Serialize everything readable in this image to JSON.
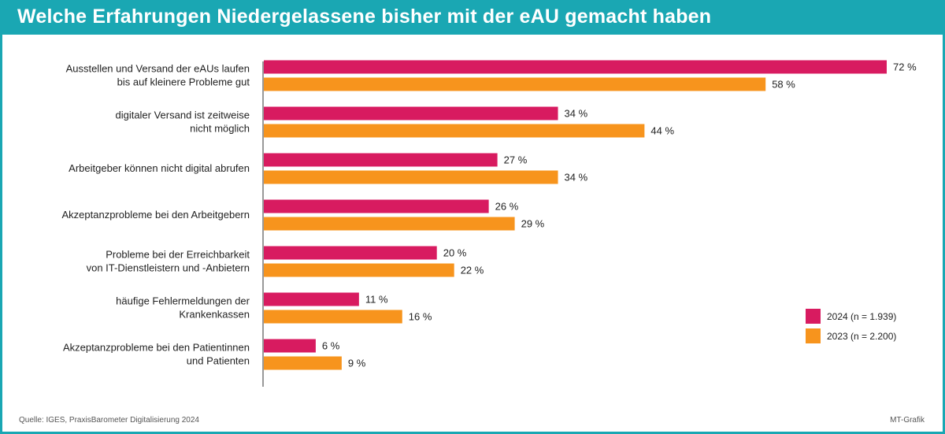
{
  "title": "Welche Erfahrungen Niedergelassene bisher mit der eAU gemacht haben",
  "source": "Quelle: IGES, PraxisBarometer Digitalisierung 2024",
  "credit": "MT-Grafik",
  "colors": {
    "series_2024": "#d81b60",
    "series_2023": "#f7941d",
    "frame": "#1aa7b3"
  },
  "chart_data": {
    "type": "bar",
    "orientation": "horizontal",
    "categories": [
      [
        "Ausstellen und Versand der eAUs laufen",
        "bis auf kleinere Probleme gut"
      ],
      [
        "digitaler Versand ist zeitweise",
        "nicht möglich"
      ],
      [
        "Arbeitgeber können nicht digital abrufen"
      ],
      [
        "Akzeptanzprobleme bei den Arbeitgebern"
      ],
      [
        "Probleme bei der Erreichbarkeit",
        "von IT-Dienstleistern und -Anbietern"
      ],
      [
        "häufige Fehlermeldungen der",
        "Krankenkassen"
      ],
      [
        "Akzeptanzprobleme bei den Patientinnen",
        "und Patienten"
      ]
    ],
    "series": [
      {
        "name": "2024 (n = 1.939)",
        "values": [
          72,
          34,
          27,
          26,
          20,
          11,
          6
        ],
        "value_labels": [
          "72 %",
          "34 %",
          "27 %",
          "26 %",
          "20 %",
          "11 %",
          "6 %"
        ]
      },
      {
        "name": "2023 (n = 2.200)",
        "values": [
          58,
          44,
          34,
          29,
          22,
          16,
          9
        ],
        "value_labels": [
          "58 %",
          "44 %",
          "34 %",
          "29 %",
          "22 %",
          "16 %",
          "9 %"
        ]
      }
    ],
    "xlim": [
      0,
      72
    ],
    "grid": false,
    "legend_position": "bottom-right"
  }
}
